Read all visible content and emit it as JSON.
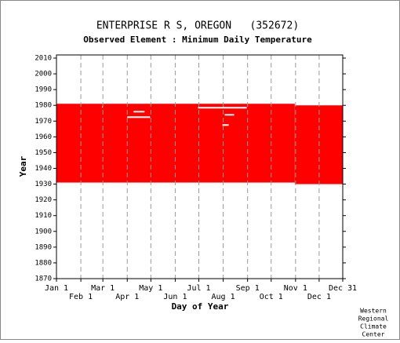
{
  "chart_data": {
    "type": "availability",
    "title": "ENTERPRISE R S, OREGON   (352672)",
    "subtitle": "Observed Element : Minimum Daily Temperature",
    "x_label": "Day of Year",
    "y_label": "Year",
    "credit": [
      "Western",
      "Regional",
      "Climate",
      "Center"
    ],
    "color": "#ff0000",
    "gap_color": "#ffffff",
    "xlim": [
      1,
      365
    ],
    "xticks": [
      {
        "value": 1,
        "label": "Jan 1"
      },
      {
        "value": 32,
        "label": "Feb 1"
      },
      {
        "value": 60,
        "label": "Mar 1"
      },
      {
        "value": 91,
        "label": "Apr 1"
      },
      {
        "value": 121,
        "label": "May 1"
      },
      {
        "value": 152,
        "label": "Jun 1"
      },
      {
        "value": 182,
        "label": "Jul 1"
      },
      {
        "value": 213,
        "label": "Aug 1"
      },
      {
        "value": 244,
        "label": "Sep 1"
      },
      {
        "value": 274,
        "label": "Oct 1"
      },
      {
        "value": 305,
        "label": "Nov 1"
      },
      {
        "value": 335,
        "label": "Dec 1"
      },
      {
        "value": 365,
        "label": "Dec 31"
      }
    ],
    "ylim": [
      1870,
      2012
    ],
    "yticks": [
      1870,
      1880,
      1890,
      1900,
      1910,
      1920,
      1930,
      1940,
      1950,
      1960,
      1970,
      1980,
      1990,
      2000,
      2010
    ],
    "grid": true,
    "blocks": [
      {
        "days": [
          1,
          304
        ],
        "years": [
          1931,
          1981
        ]
      },
      {
        "days": [
          304,
          365
        ],
        "years": [
          1930,
          1980
        ]
      }
    ],
    "gaps": [
      {
        "days": [
          91,
          120
        ],
        "year": 1972.5
      },
      {
        "days": [
          99,
          113
        ],
        "year": 1976
      },
      {
        "days": [
          181,
          243
        ],
        "year": 1978.5
      },
      {
        "days": [
          215,
          227
        ],
        "year": 1974
      },
      {
        "days": [
          212,
          220
        ],
        "year": 1967.5
      },
      {
        "days": [
          59,
          60
        ],
        "year": 1979
      }
    ]
  }
}
